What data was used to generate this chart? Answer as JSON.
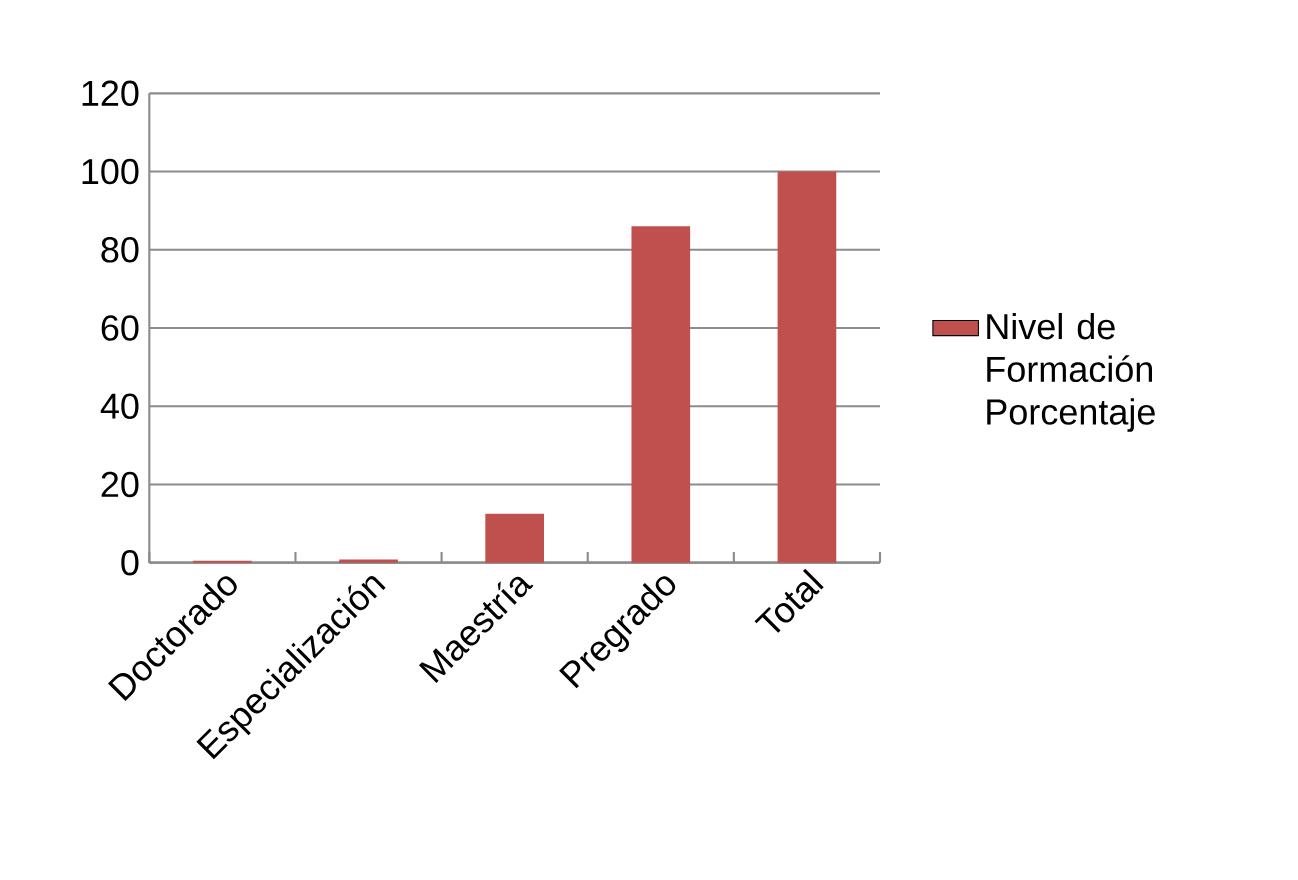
{
  "chart_data": {
    "type": "bar",
    "categories": [
      "Doctorado",
      "Especialización",
      "Maestría",
      "Pregrado",
      "Total"
    ],
    "series": [
      {
        "name": "Nivel de Formación Porcentaje",
        "color": "#c0504d",
        "values": [
          0.5,
          0.8,
          12.5,
          86,
          100
        ]
      }
    ],
    "ylim": [
      0,
      120
    ],
    "yticks": [
      0,
      20,
      40,
      60,
      80,
      100,
      120
    ],
    "grid": "y",
    "legend": "right"
  }
}
